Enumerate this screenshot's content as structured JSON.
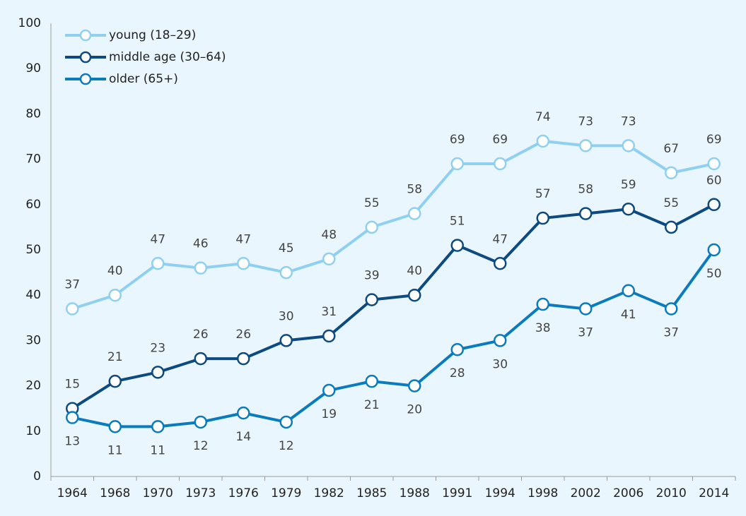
{
  "chart_data": {
    "type": "line",
    "categories": [
      "1964",
      "1968",
      "1970",
      "1973",
      "1976",
      "1979",
      "1982",
      "1985",
      "1988",
      "1991",
      "1994",
      "1998",
      "2002",
      "2006",
      "2010",
      "2014"
    ],
    "series": [
      {
        "name": "young (18–29)",
        "color": "#8fd0f0",
        "values": [
          37,
          40,
          47,
          46,
          47,
          45,
          48,
          55,
          58,
          69,
          69,
          74,
          73,
          73,
          67,
          69
        ]
      },
      {
        "name": "middle age (30–64)",
        "color": "#0d4a80",
        "values": [
          15,
          21,
          23,
          26,
          26,
          30,
          31,
          39,
          40,
          51,
          47,
          57,
          58,
          59,
          55,
          60
        ]
      },
      {
        "name": "older (65+)",
        "color": "#0a7bbd",
        "values": [
          13,
          11,
          11,
          12,
          14,
          12,
          19,
          21,
          20,
          28,
          30,
          38,
          37,
          41,
          37,
          50
        ]
      }
    ],
    "ylim": [
      0,
      100
    ],
    "yticks": [
      0,
      10,
      20,
      30,
      40,
      50,
      60,
      70,
      80,
      90,
      100
    ],
    "grid": false,
    "legend": "top-left"
  }
}
